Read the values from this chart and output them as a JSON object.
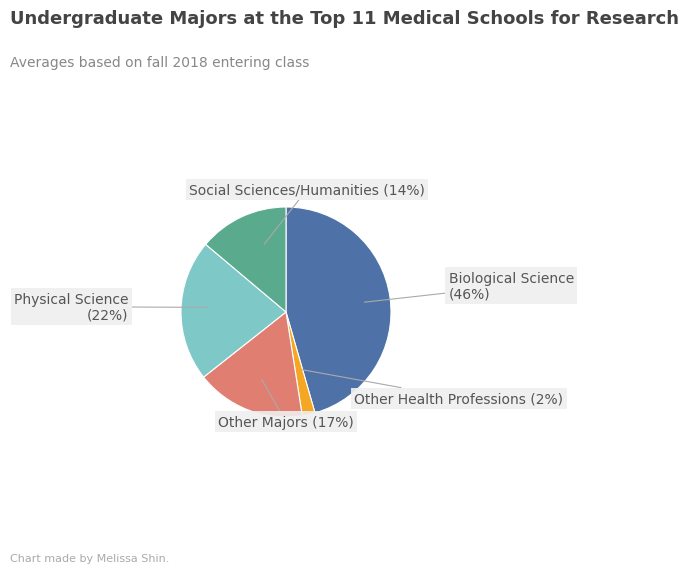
{
  "title": "Undergraduate Majors at the Top 11 Medical Schools for Research",
  "subtitle": "Averages based on fall 2018 entering class",
  "footer": "Chart made by Melissa Shin.",
  "labels": [
    "Biological Science",
    "Social Sciences/Humanities",
    "Physical Science",
    "Other Majors",
    "Other Health Professions"
  ],
  "values": [
    46,
    14,
    22,
    17,
    2
  ],
  "colors": [
    "#4e72a8",
    "#5aaa8e",
    "#7fc8c8",
    "#e07e72",
    "#f5a623"
  ],
  "background_color": "#ffffff",
  "title_fontsize": 13,
  "subtitle_fontsize": 10,
  "footer_fontsize": 8,
  "label_fontsize": 10
}
